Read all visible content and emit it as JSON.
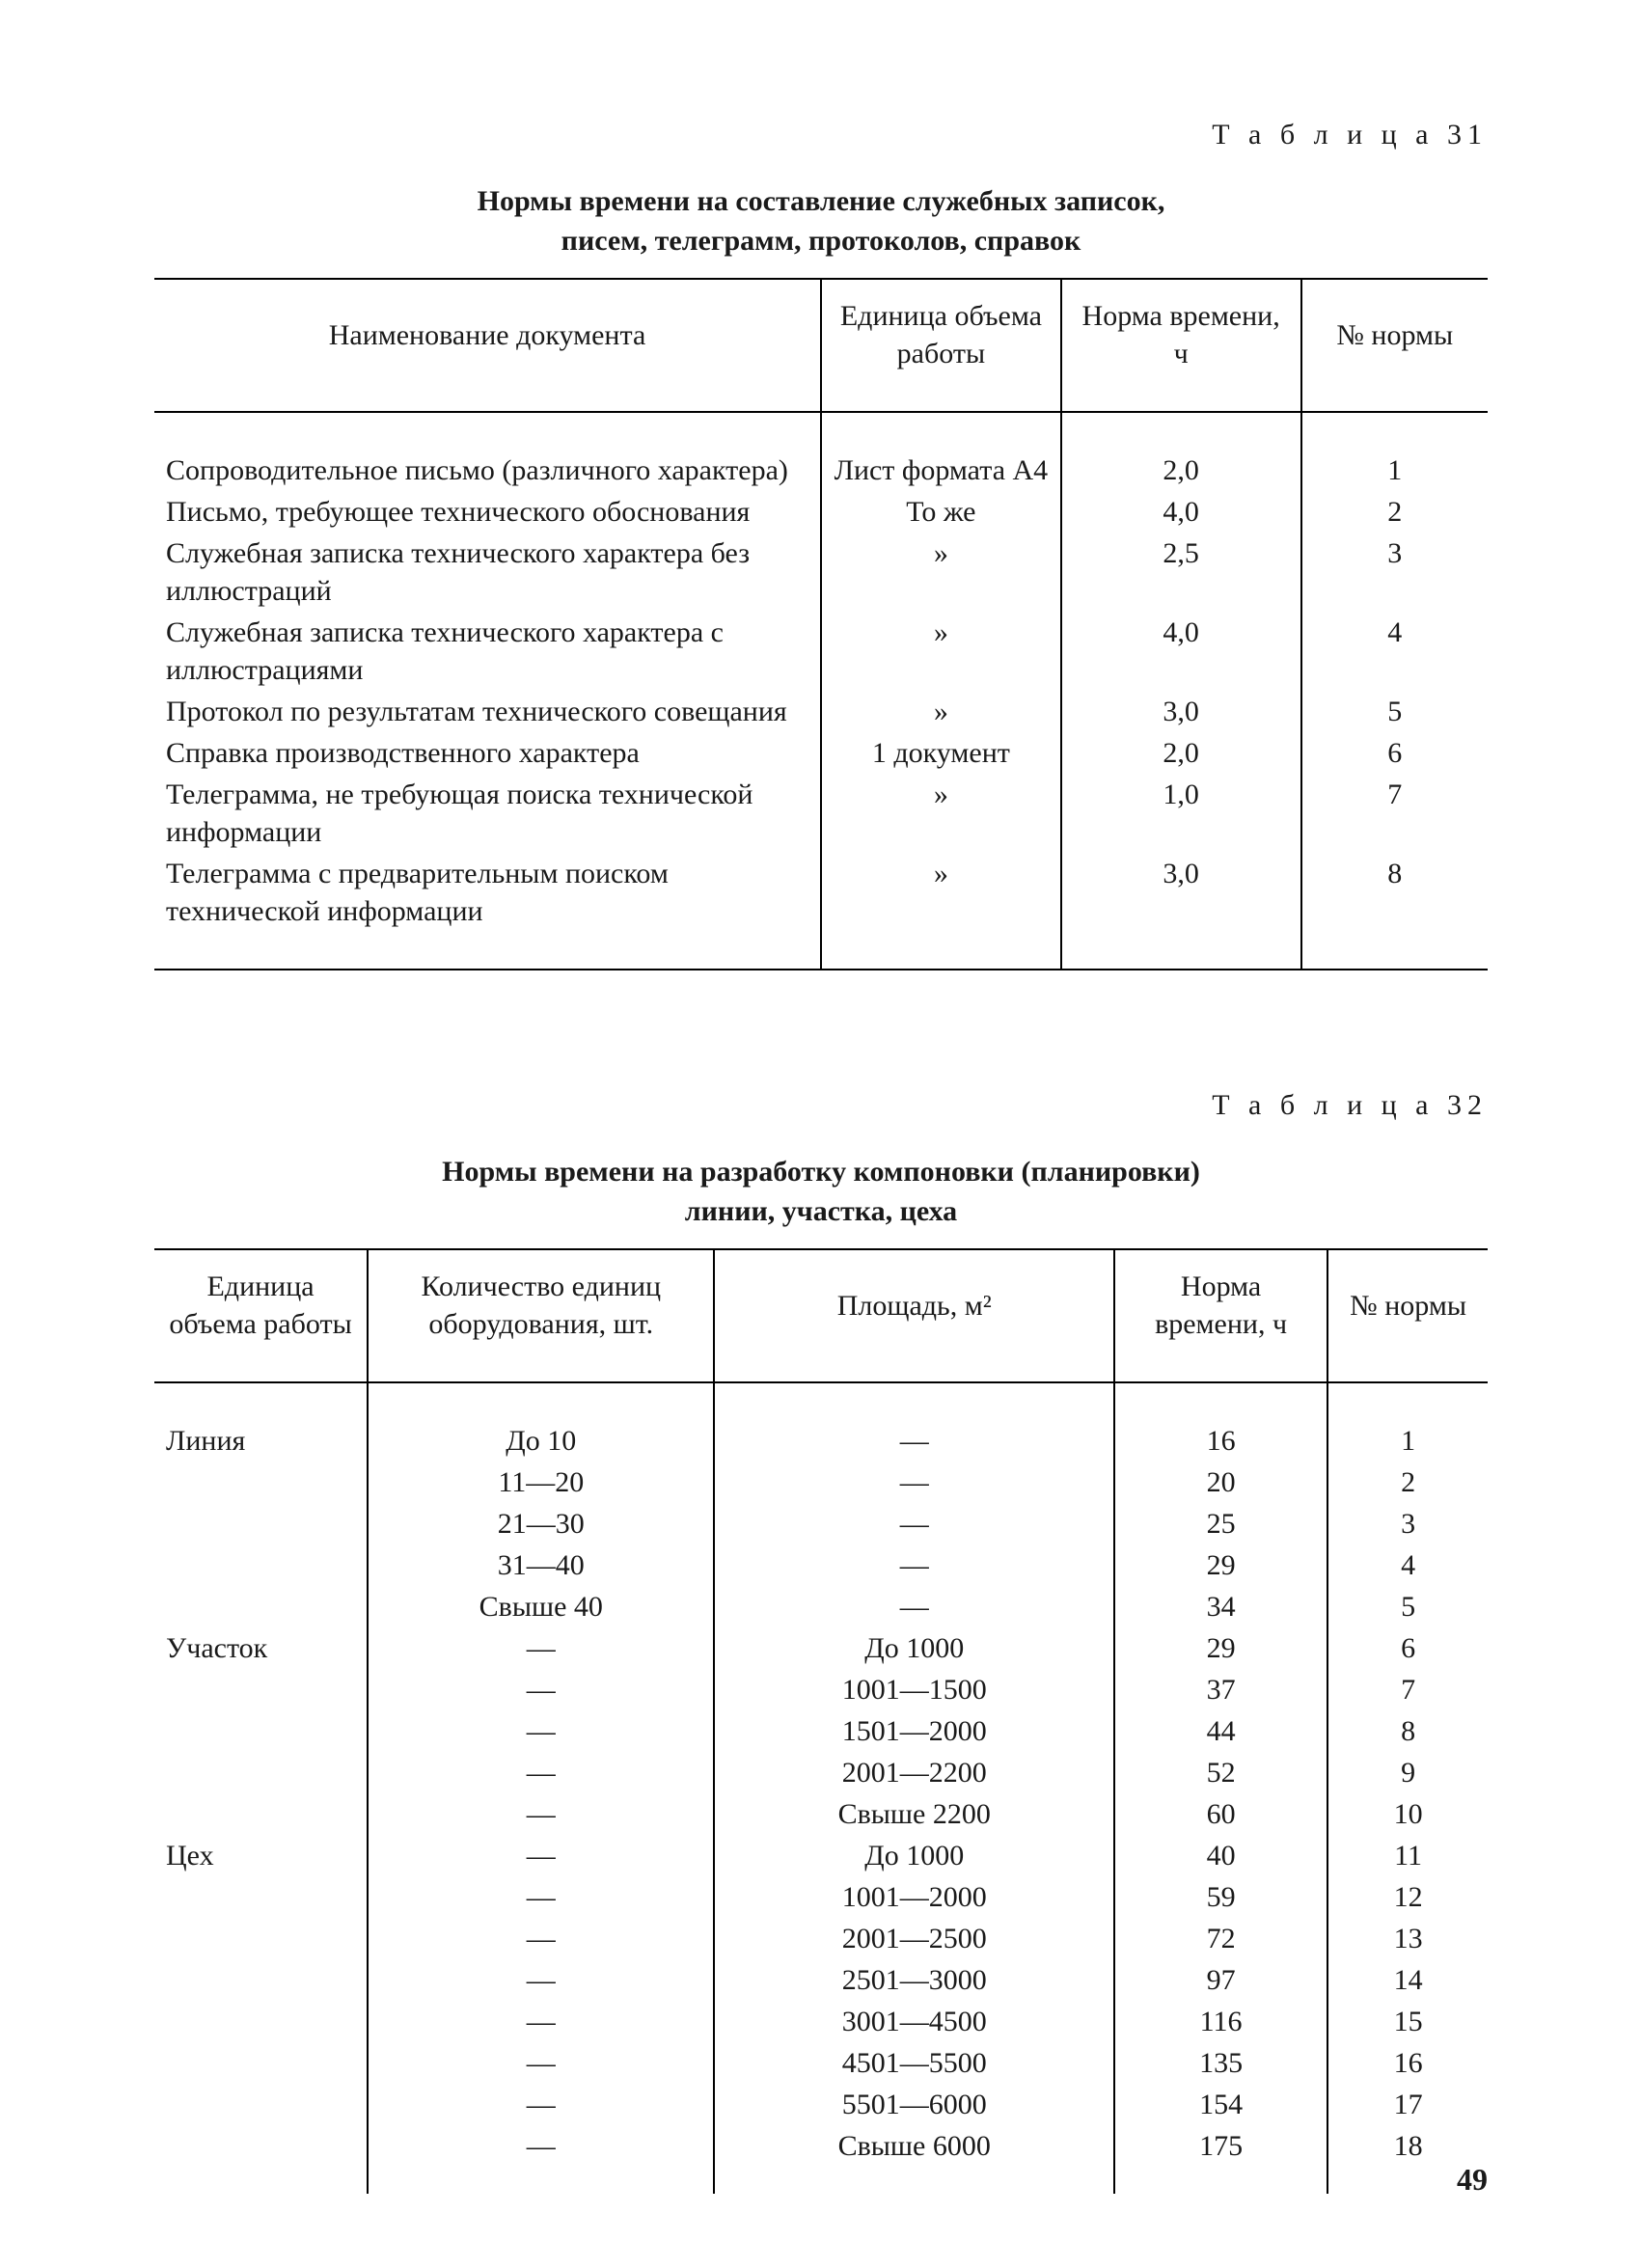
{
  "page_number": "49",
  "colors": {
    "text": "#1a1a1a",
    "background": "#ffffff",
    "rule": "#000000"
  },
  "typography": {
    "family": "Times New Roman serif",
    "body_size_pt": 11,
    "title_size_pt": 11,
    "title_weight": "bold"
  },
  "table31": {
    "type": "table",
    "label": "Т а б л и ц а  31",
    "title_line1": "Нормы времени на составление служебных записок,",
    "title_line2": "писем, телеграмм, протоколов, справок",
    "columns": [
      {
        "key": "docname",
        "label": "Наименование документа",
        "align": "left",
        "width_pct": 50
      },
      {
        "key": "unit",
        "label": "Единица объема работы",
        "align": "center",
        "width_pct": 18
      },
      {
        "key": "norm",
        "label": "Норма времени, ч",
        "align": "center",
        "width_pct": 18
      },
      {
        "key": "num",
        "label": "№ нормы",
        "align": "center",
        "width_pct": 14
      }
    ],
    "rows": [
      {
        "docname": "Сопроводительное письмо (различного характера)",
        "unit": "Лист формата А4",
        "norm": "2,0",
        "num": "1"
      },
      {
        "docname": "Письмо, требующее технического обоснования",
        "unit": "То же",
        "norm": "4,0",
        "num": "2"
      },
      {
        "docname": "Служебная записка технического характера без иллюстраций",
        "unit": "»",
        "norm": "2,5",
        "num": "3"
      },
      {
        "docname": "Служебная записка технического характера с иллюстрациями",
        "unit": "»",
        "norm": "4,0",
        "num": "4"
      },
      {
        "docname": "Протокол по результатам технического совещания",
        "unit": "»",
        "norm": "3,0",
        "num": "5"
      },
      {
        "docname": "Справка производственного характера",
        "unit": "1 документ",
        "norm": "2,0",
        "num": "6"
      },
      {
        "docname": "Телеграмма, не требующая поиска технической информации",
        "unit": "»",
        "norm": "1,0",
        "num": "7"
      },
      {
        "docname": "Телеграмма с предварительным поиском технической информации",
        "unit": "»",
        "norm": "3,0",
        "num": "8"
      }
    ]
  },
  "table32": {
    "type": "table",
    "label": "Т а б л и ц а  32",
    "title_line1": "Нормы времени на разработку компоновки (планировки)",
    "title_line2": "линии, участка, цеха",
    "columns": [
      {
        "key": "unit",
        "label": "Единица объема работы",
        "align": "left",
        "width_pct": 16
      },
      {
        "key": "qty",
        "label": "Количество единиц оборудования, шт.",
        "align": "center",
        "width_pct": 26
      },
      {
        "key": "area",
        "label": "Площадь, м²",
        "align": "center",
        "width_pct": 30
      },
      {
        "key": "norm",
        "label": "Норма времени, ч",
        "align": "center",
        "width_pct": 16
      },
      {
        "key": "num",
        "label": "№ нормы",
        "align": "center",
        "width_pct": 12
      }
    ],
    "rows": [
      {
        "unit": "Линия",
        "qty": "До 10",
        "area": "—",
        "norm": "16",
        "num": "1"
      },
      {
        "unit": "",
        "qty": "11—20",
        "area": "—",
        "norm": "20",
        "num": "2"
      },
      {
        "unit": "",
        "qty": "21—30",
        "area": "—",
        "norm": "25",
        "num": "3"
      },
      {
        "unit": "",
        "qty": "31—40",
        "area": "—",
        "norm": "29",
        "num": "4"
      },
      {
        "unit": "",
        "qty": "Свыше 40",
        "area": "—",
        "norm": "34",
        "num": "5"
      },
      {
        "unit": "Участок",
        "qty": "—",
        "area": "До 1000",
        "norm": "29",
        "num": "6"
      },
      {
        "unit": "",
        "qty": "—",
        "area": "1001—1500",
        "norm": "37",
        "num": "7"
      },
      {
        "unit": "",
        "qty": "—",
        "area": "1501—2000",
        "norm": "44",
        "num": "8"
      },
      {
        "unit": "",
        "qty": "—",
        "area": "2001—2200",
        "norm": "52",
        "num": "9"
      },
      {
        "unit": "",
        "qty": "—",
        "area": "Свыше 2200",
        "norm": "60",
        "num": "10"
      },
      {
        "unit": "Цех",
        "qty": "—",
        "area": "До 1000",
        "norm": "40",
        "num": "11"
      },
      {
        "unit": "",
        "qty": "—",
        "area": "1001—2000",
        "norm": "59",
        "num": "12"
      },
      {
        "unit": "",
        "qty": "—",
        "area": "2001—2500",
        "norm": "72",
        "num": "13"
      },
      {
        "unit": "",
        "qty": "—",
        "area": "2501—3000",
        "norm": "97",
        "num": "14"
      },
      {
        "unit": "",
        "qty": "—",
        "area": "3001—4500",
        "norm": "116",
        "num": "15"
      },
      {
        "unit": "",
        "qty": "—",
        "area": "4501—5500",
        "norm": "135",
        "num": "16"
      },
      {
        "unit": "",
        "qty": "—",
        "area": "5501—6000",
        "norm": "154",
        "num": "17"
      },
      {
        "unit": "",
        "qty": "—",
        "area": "Свыше 6000",
        "norm": "175",
        "num": "18"
      }
    ]
  }
}
